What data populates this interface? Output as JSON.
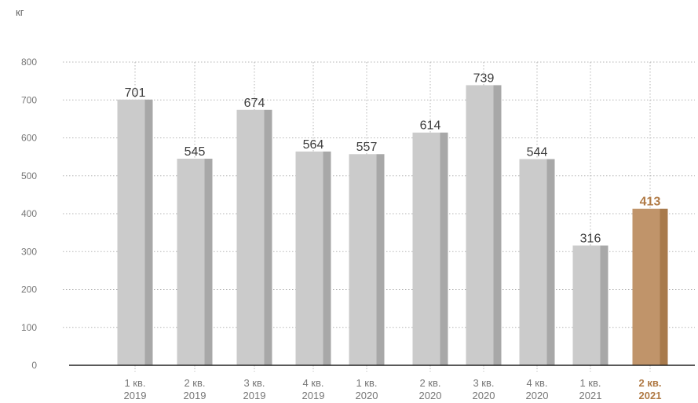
{
  "chart_data": {
    "type": "bar",
    "unit": "кг",
    "categories": [
      [
        "1 кв.",
        "2019"
      ],
      [
        "2 кв.",
        "2019"
      ],
      [
        "3 кв.",
        "2019"
      ],
      [
        "4 кв.",
        "2019"
      ],
      [
        "1 кв.",
        "2020"
      ],
      [
        "2 кв.",
        "2020"
      ],
      [
        "3 кв.",
        "2020"
      ],
      [
        "4 кв.",
        "2020"
      ],
      [
        "1 кв.",
        "2021"
      ],
      [
        "2 кв.",
        "2021"
      ]
    ],
    "values": [
      701,
      545,
      674,
      564,
      557,
      614,
      739,
      544,
      316,
      413
    ],
    "ylim": [
      0,
      800
    ],
    "yticks": [
      0,
      100,
      200,
      300,
      400,
      500,
      600,
      700,
      800
    ],
    "grid": true,
    "highlight_index": 9,
    "colors": {
      "bar_front": "#cbcbcb",
      "bar_side": "#a8a8a8",
      "highlight_front": "#c0946a",
      "highlight_side": "#a87a4c",
      "highlight_text": "#b07a45",
      "label_text": "#3c3c3c",
      "axis_text": "#777777",
      "grid": "#b5b5b5",
      "axis_line": "#222222"
    }
  }
}
